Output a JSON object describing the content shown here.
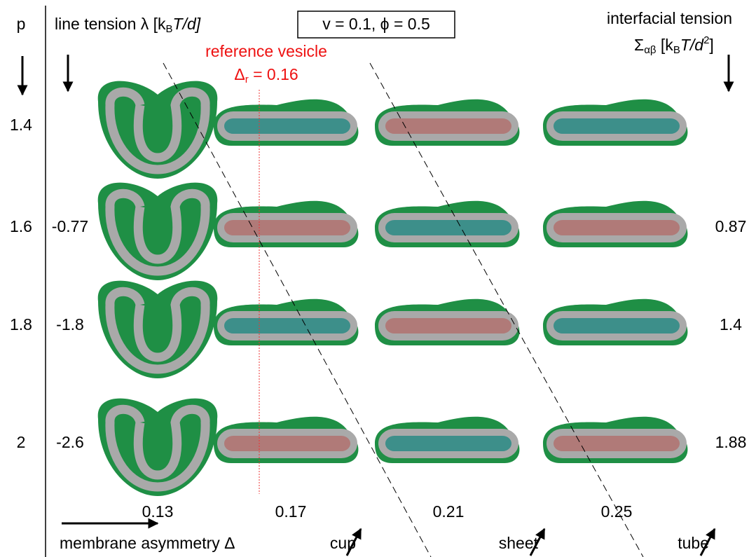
{
  "header": {
    "p_label": "p",
    "line_tension": {
      "text": "line tension λ [k",
      "sub": "B",
      "tail": "T/d]"
    },
    "parameters": "v = 0.1, ϕ = 0.5",
    "interfacial_title": "interfacial tension",
    "interfacial_unit": {
      "text": "Σ",
      "sub": "αβ",
      "mid": " [k",
      "sub2": "B",
      "tail": "T/d",
      "sup": "2",
      "end": "]"
    }
  },
  "reference": {
    "title": "reference vesicle",
    "value": {
      "text": "Δ",
      "sub": "r",
      "tail": " = 0.16"
    }
  },
  "rows": [
    {
      "p": 1.4,
      "line_tension": null,
      "interfacial_tension": null
    },
    {
      "p": 1.6,
      "line_tension": -0.77,
      "interfacial_tension": 0.87
    },
    {
      "p": 1.8,
      "line_tension": -1.8,
      "interfacial_tension": 1.4
    },
    {
      "p": 2,
      "line_tension": -2.6,
      "interfacial_tension": 1.88
    }
  ],
  "columns": [
    0.13,
    0.17,
    0.21,
    0.25
  ],
  "footer": {
    "asymmetry": "membrane asymmetry Δ",
    "shapes": [
      "cup",
      "sheet",
      "tube"
    ]
  }
}
